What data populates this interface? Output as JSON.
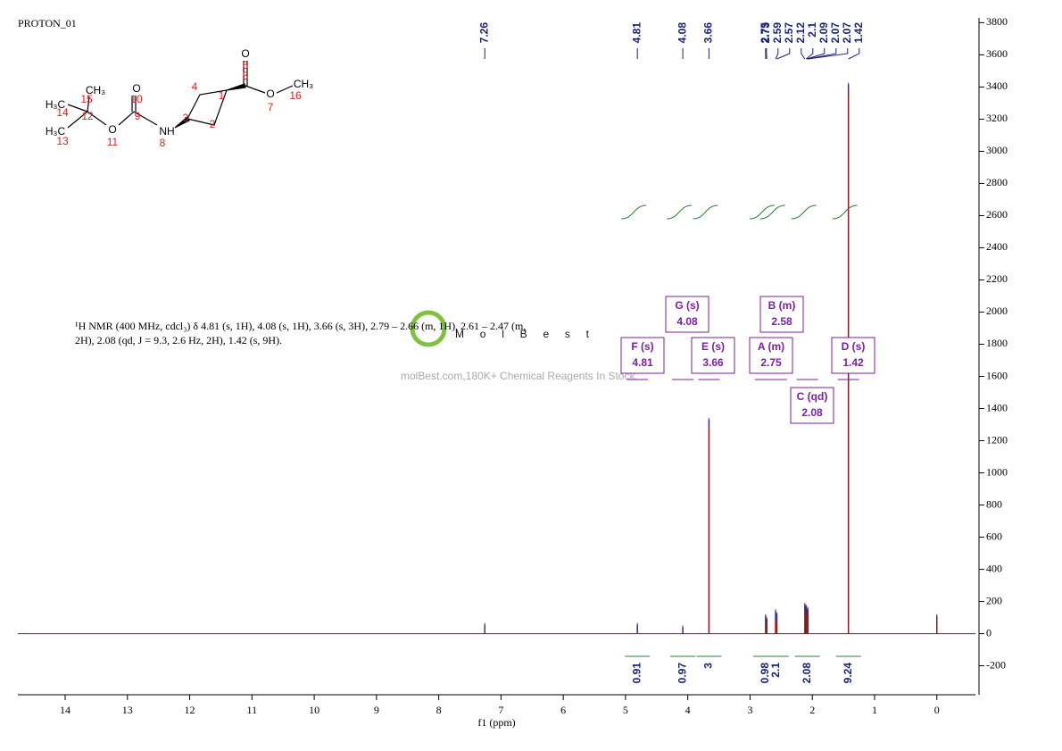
{
  "header": {
    "title": "PROTON_01"
  },
  "molecule": {
    "atoms": [
      "H₃C",
      "CH₃",
      "H₃C",
      "O",
      "O",
      "NH",
      "O",
      "O",
      "CH₃"
    ],
    "numbers": [
      "15",
      "14",
      "12",
      "13",
      "11",
      "10",
      "9",
      "8",
      "3",
      "4",
      "2",
      "1",
      "5",
      "6",
      "7",
      "16"
    ]
  },
  "description": [
    "¹H NMR (400 MHz, cdcl₃) δ 4.81 (s, 1H), 4.08 (s, 1H), 3.66 (s, 3H), 2.79 – 2.66 (m, 1H), 2.61 – 2.47 (m,",
    "2H), 2.08 (qd, J = 9.3, 2.6 Hz, 2H), 1.42 (s, 9H)."
  ],
  "watermark": {
    "logo": "MolBest",
    "text": "molBest.com,180K+ Chemical Reagents In Stock."
  },
  "chart_data": {
    "type": "nmr",
    "xlabel": "f1 (ppm)",
    "xlim": [
      14.76,
      -0.62
    ],
    "xticks": [
      14,
      13,
      12,
      11,
      10,
      9,
      8,
      7,
      6,
      5,
      4,
      3,
      2,
      1,
      0
    ],
    "ylim": [
      -380,
      3830
    ],
    "yticks": [
      -200,
      0,
      200,
      400,
      600,
      800,
      1000,
      1200,
      1400,
      1600,
      1800,
      2000,
      2200,
      2400,
      2600,
      2800,
      3000,
      3200,
      3400,
      3600,
      3800
    ],
    "color": "#8b1a1a",
    "peaks": {
      "x": [
        7.26,
        4.81,
        4.08,
        3.66,
        2.75,
        2.73,
        2.59,
        2.57,
        2.12,
        2.1,
        2.09,
        2.07,
        1.42,
        0
      ],
      "values": [
        55,
        55,
        40,
        1330,
        110,
        90,
        140,
        120,
        180,
        170,
        160,
        150,
        3415,
        110
      ]
    },
    "peak_labels": [
      7.26,
      4.81,
      4.08,
      3.66,
      2.75,
      2.73,
      2.59,
      2.57,
      2.12,
      2.1,
      2.09,
      2.07,
      2.07,
      1.42
    ],
    "multiplets": [
      {
        "label": "F (s)",
        "value": 4.81
      },
      {
        "label": "G (s)",
        "value": 4.08
      },
      {
        "label": "E (s)",
        "value": 3.66
      },
      {
        "label": "A (m)",
        "value": 2.75
      },
      {
        "label": "B (m)",
        "value": 2.58
      },
      {
        "label": "C (qd)",
        "value": 2.08
      },
      {
        "label": "D (s)",
        "value": 1.42
      }
    ],
    "integrals": {
      "x": [
        4.81,
        4.08,
        3.66,
        2.75,
        2.58,
        2.08,
        1.42
      ],
      "values": [
        0.91,
        0.97,
        3.0,
        0.98,
        2.1,
        2.08,
        9.24
      ]
    }
  }
}
